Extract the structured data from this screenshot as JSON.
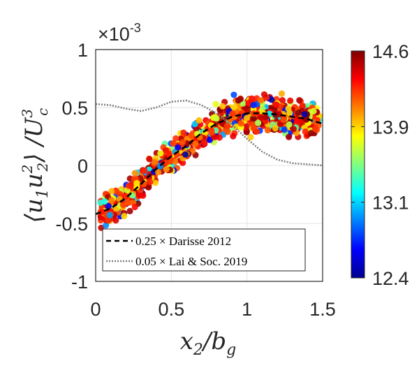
{
  "chart_data": {
    "type": "scatter",
    "title": "",
    "xlabel": "x_2/b_g",
    "ylabel": "⟨u_1u_2^2⟩/U_c^3",
    "xlim": [
      0,
      1.5
    ],
    "ylim": [
      -1,
      1
    ],
    "xticks": [
      "0",
      "0.5",
      "1",
      "1.5"
    ],
    "yticks": [
      "-1",
      "-0.5",
      "0",
      "0.5",
      "1"
    ],
    "exponent_label": "×10",
    "exponent_power": "-3",
    "grid": true,
    "colorbar": {
      "range": [
        12.4,
        14.6
      ],
      "colormap": "jet",
      "ticks": [
        "14.6",
        "13.9",
        "13.1",
        "12.4"
      ]
    },
    "series": [
      {
        "name": "0.25 × Darisse 2012",
        "style": "dashed",
        "color": "#000000",
        "x": [
          0,
          0.1,
          0.2,
          0.3,
          0.4,
          0.5,
          0.6,
          0.7,
          0.8,
          0.9,
          1.0,
          1.1,
          1.2,
          1.3,
          1.4,
          1.5
        ],
        "y": [
          -0.42,
          -0.37,
          -0.28,
          -0.16,
          -0.03,
          0.08,
          0.17,
          0.28,
          0.36,
          0.42,
          0.45,
          0.45,
          0.44,
          0.42,
          0.4,
          0.36
        ]
      },
      {
        "name": "0.05 × Lai & Soc. 2019",
        "style": "dotted",
        "color": "#808080",
        "x": [
          0,
          0.1,
          0.2,
          0.3,
          0.4,
          0.5,
          0.6,
          0.7,
          0.8,
          0.9,
          1.0,
          1.1,
          1.2,
          1.3,
          1.4,
          1.5
        ],
        "y": [
          0.53,
          0.52,
          0.49,
          0.47,
          0.5,
          0.55,
          0.56,
          0.52,
          0.45,
          0.35,
          0.23,
          0.12,
          0.05,
          0.02,
          0.01,
          0.0
        ]
      }
    ],
    "scatter_trend": {
      "description": "Cloud of colored points following the Darisse trend with spread ±0.2",
      "x_range": [
        0.03,
        1.48
      ],
      "spread": 0.2,
      "count": 900
    }
  }
}
